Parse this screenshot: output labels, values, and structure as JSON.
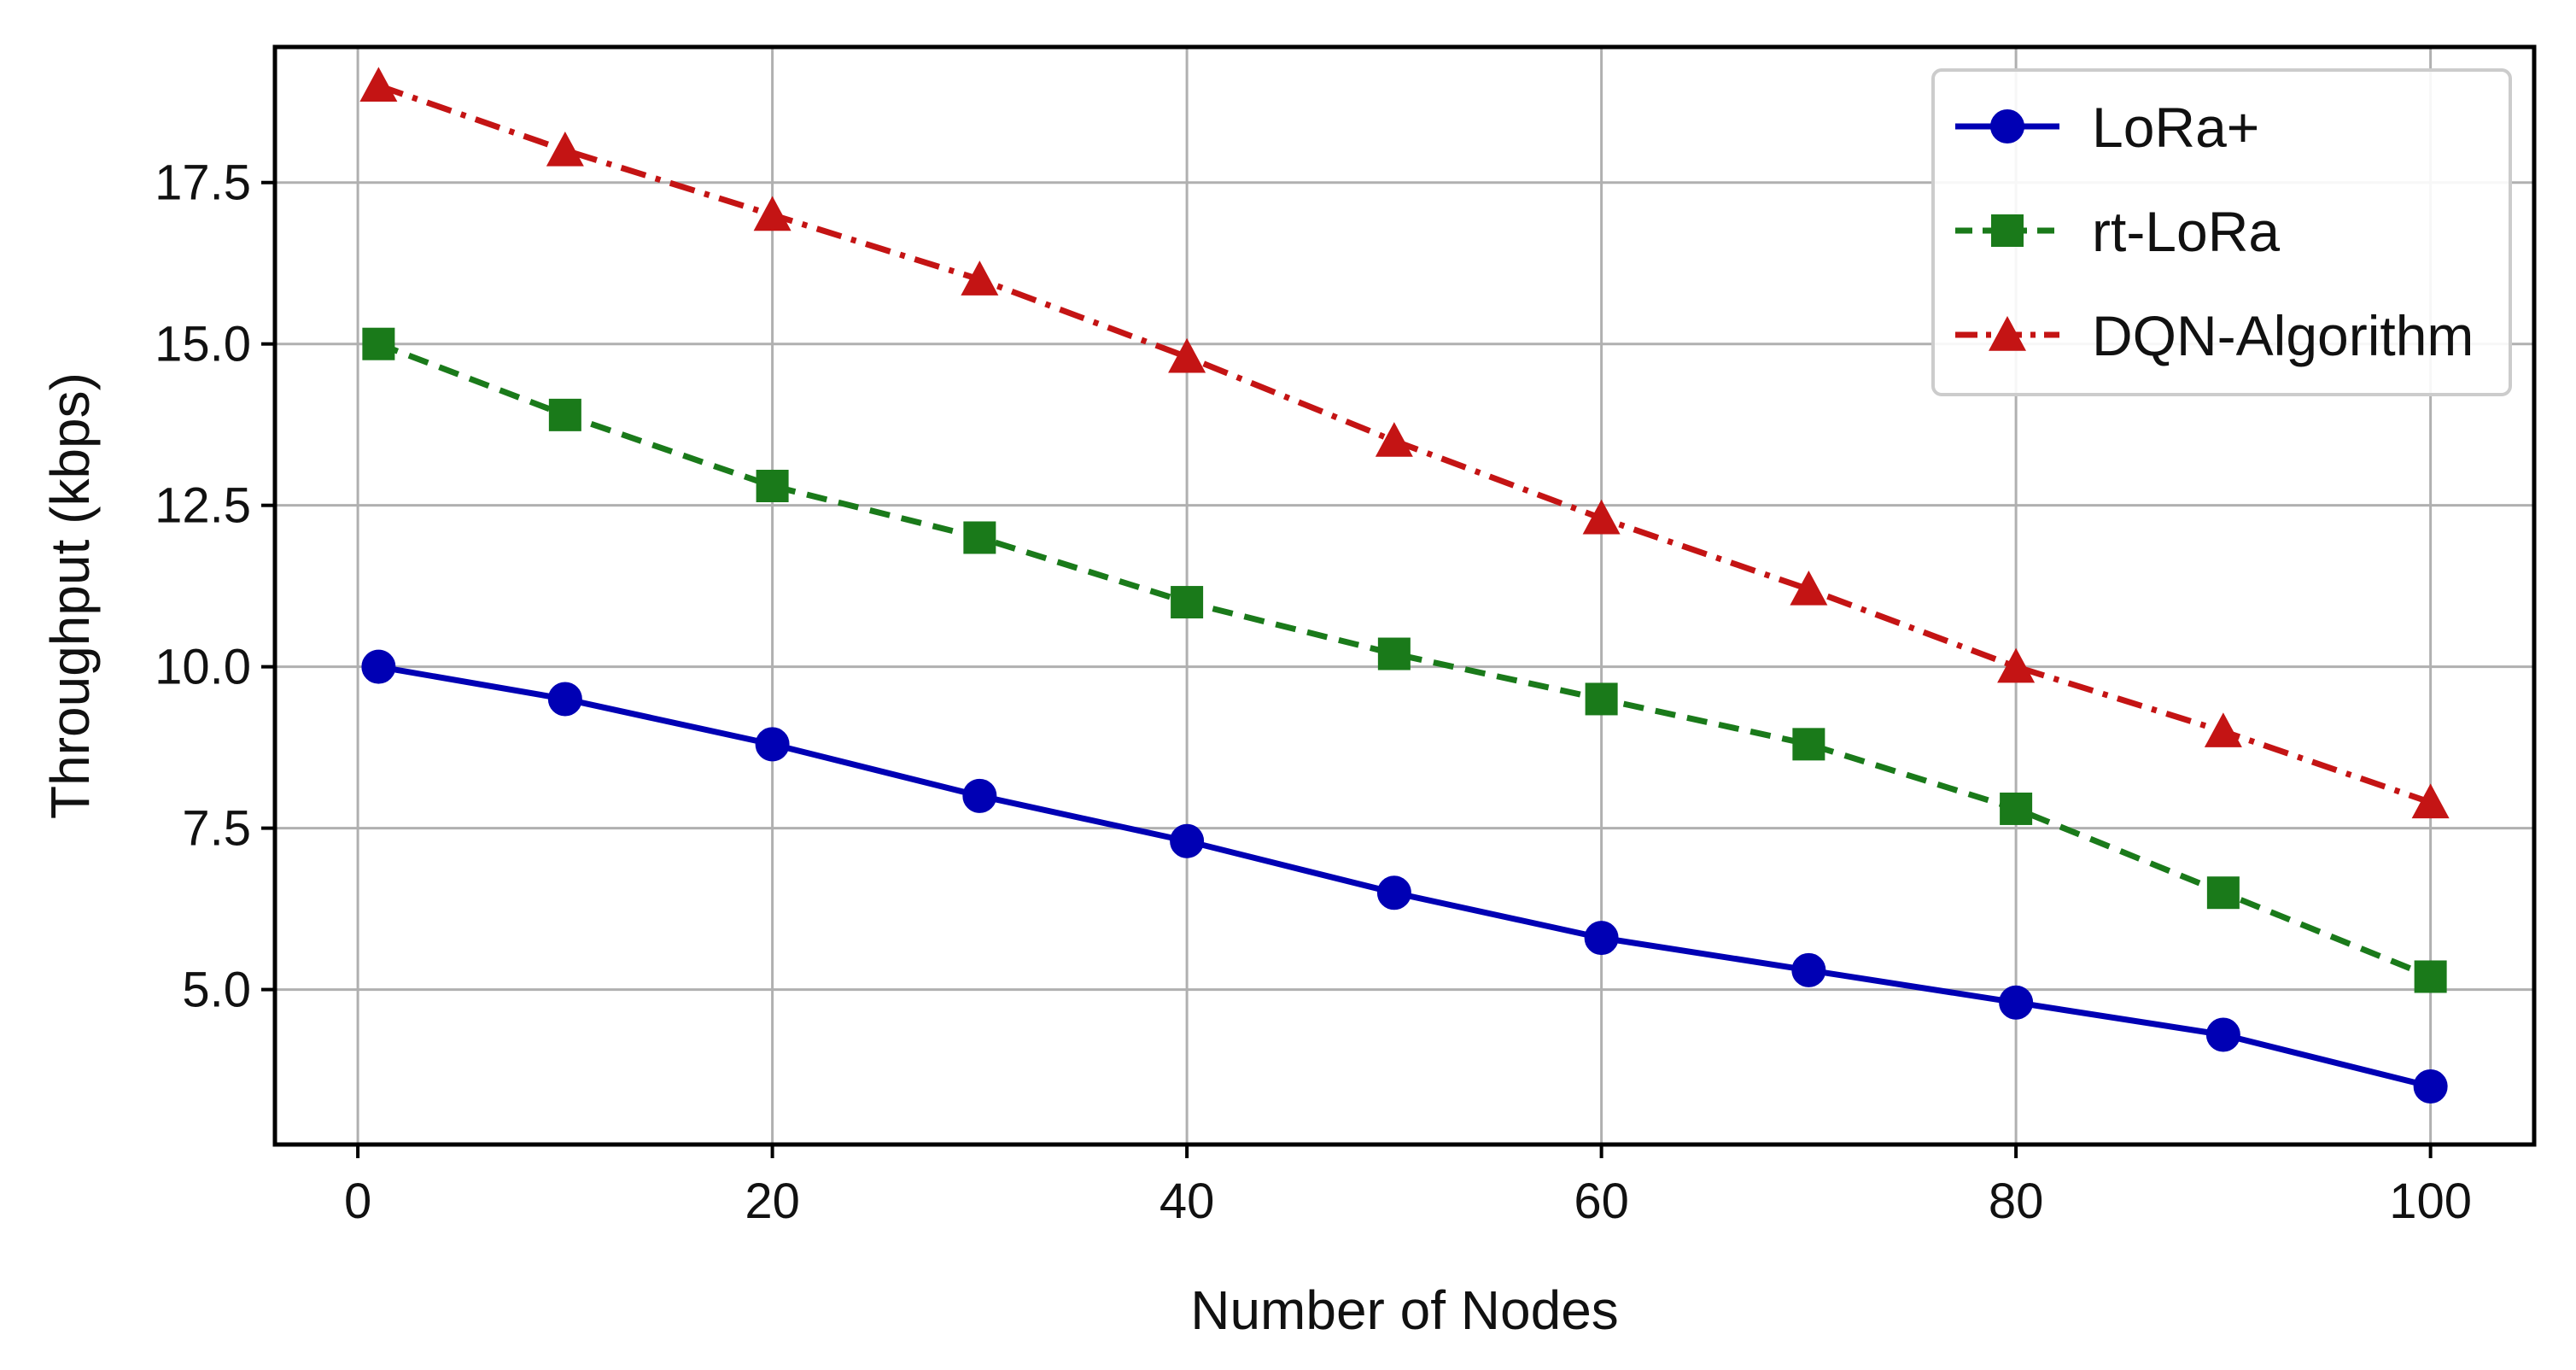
{
  "chart_data": {
    "type": "line",
    "xlabel": "Number of Nodes",
    "ylabel": "Throughput (kbps)",
    "xlim": [
      -4,
      105
    ],
    "ylim": [
      2.6,
      19.6
    ],
    "xticks": [
      0,
      20,
      40,
      60,
      80,
      100
    ],
    "xtick_labels": [
      "0",
      "20",
      "40",
      "60",
      "80",
      "100"
    ],
    "yticks": [
      5.0,
      7.5,
      10.0,
      12.5,
      15.0,
      17.5
    ],
    "ytick_labels": [
      "5.0",
      "7.5",
      "10.0",
      "12.5",
      "15.0",
      "17.5"
    ],
    "grid": true,
    "legend_position": "top-right",
    "x": [
      1,
      10,
      20,
      30,
      40,
      50,
      60,
      70,
      80,
      90,
      100
    ],
    "series": [
      {
        "name": "LoRa+",
        "values": [
          10.0,
          9.5,
          8.8,
          8.0,
          7.3,
          6.5,
          5.8,
          5.3,
          4.8,
          4.3,
          3.5
        ],
        "color": "#0000b4",
        "linestyle": "solid",
        "marker": "circle"
      },
      {
        "name": "rt-LoRa",
        "values": [
          15.0,
          13.9,
          12.8,
          12.0,
          11.0,
          10.2,
          9.5,
          8.8,
          7.8,
          6.5,
          5.2
        ],
        "color": "#1a7a1a",
        "linestyle": "dashed",
        "marker": "square"
      },
      {
        "name": "DQN-Algorithm",
        "values": [
          19.0,
          18.0,
          17.0,
          16.0,
          14.8,
          13.5,
          12.3,
          11.2,
          10.0,
          9.0,
          7.9
        ],
        "color": "#c41414",
        "linestyle": "dashdot",
        "marker": "triangle"
      }
    ]
  }
}
